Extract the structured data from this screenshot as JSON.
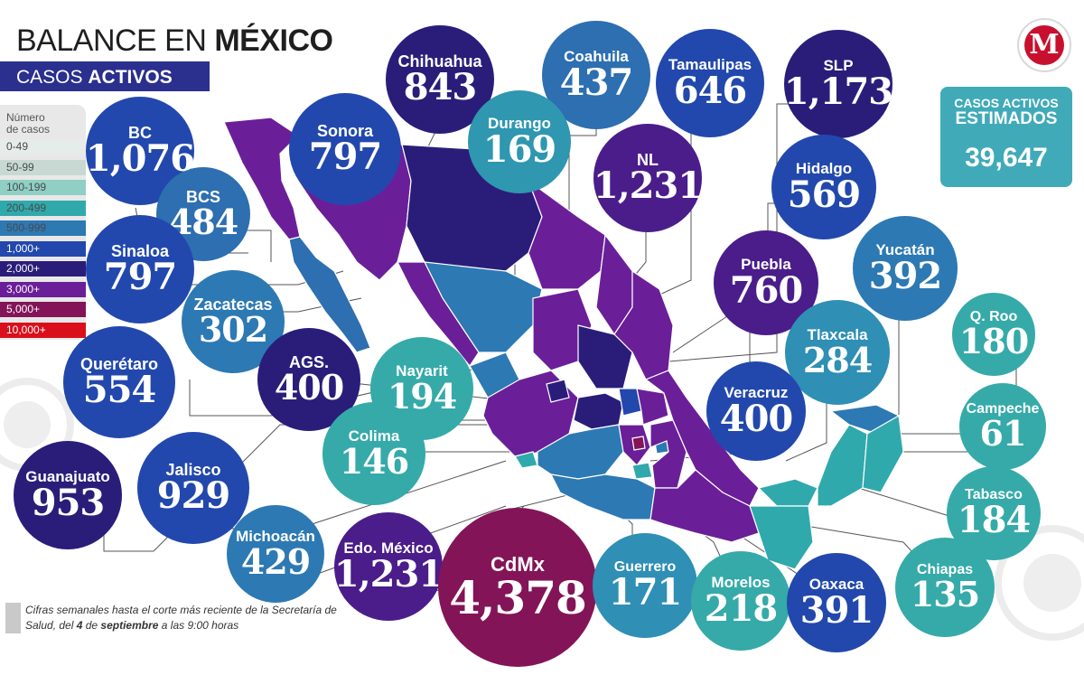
{
  "title": {
    "light": "BALANCE EN ",
    "bold": "MÉXICO"
  },
  "subtitle": {
    "light": "CASOS ",
    "bold": "ACTIVOS"
  },
  "legend": {
    "title_line1": "Número",
    "title_line2": "de casos",
    "items": [
      {
        "label": "0-49",
        "color": "#e6ece9"
      },
      {
        "label": "50-99",
        "color": "#c8d9d3"
      },
      {
        "label": "100-199",
        "color": "#8fcfc4"
      },
      {
        "label": "200-499",
        "color": "#30a9ac"
      },
      {
        "label": "500-999",
        "color": "#2d79b3"
      },
      {
        "label": "1,000+",
        "color": "#2248ad"
      },
      {
        "label": "2,000+",
        "color": "#2a1d7a"
      },
      {
        "label": "3,000+",
        "color": "#6a1f99"
      },
      {
        "label": "5,000+",
        "color": "#831458"
      },
      {
        "label": "10,000+",
        "color": "#d9101b"
      }
    ]
  },
  "total": {
    "line1": "CASOS ACTIVOS",
    "line2": "ESTIMADOS",
    "value": "39,647"
  },
  "logo": {
    "letter": "M"
  },
  "note": {
    "part1": "Cifras semanales hasta el corte más reciente de la Secretaría de Salud, del ",
    "day": "4",
    "part2": " de ",
    "month": "septiembre",
    "part3": " a las 9:00 horas"
  },
  "colors": {
    "teal": "#30a9ac",
    "blue_dark": "#2248ad",
    "blue_med": "#2d79b3",
    "navy": "#2a1d7a",
    "purple": "#6a1f99",
    "maroon": "#831458"
  },
  "states": [
    {
      "name": "BC",
      "value": "1,076",
      "color": "#2248ad"
    },
    {
      "name": "BCS",
      "value": "484",
      "color": "#2d6fb0"
    },
    {
      "name": "Sinaloa",
      "value": "797",
      "color": "#2248ad"
    },
    {
      "name": "Zacatecas",
      "value": "302",
      "color": "#2d79b3"
    },
    {
      "name": "Querétaro",
      "value": "554",
      "color": "#2248ad"
    },
    {
      "name": "AGS.",
      "value": "400",
      "color": "#2a1d7a"
    },
    {
      "name": "Guanajuato",
      "value": "953",
      "color": "#2a1d7a"
    },
    {
      "name": "Jalisco",
      "value": "929",
      "color": "#2248ad"
    },
    {
      "name": "Michoacán",
      "value": "429",
      "color": "#2d79b3"
    },
    {
      "name": "Edo. México",
      "value": "1,231",
      "color": "#4a1d8a"
    },
    {
      "name": "CdMx",
      "value": "4,378",
      "color": "#831458"
    },
    {
      "name": "Chihuahua",
      "value": "843",
      "color": "#2a1d7a"
    },
    {
      "name": "Sonora",
      "value": "797",
      "color": "#2248ad"
    },
    {
      "name": "Coahuila",
      "value": "437",
      "color": "#2d6fb0"
    },
    {
      "name": "Durango",
      "value": "169",
      "color": "#2f97b0"
    },
    {
      "name": "Tamaulipas",
      "value": "646",
      "color": "#2248ad"
    },
    {
      "name": "NL",
      "value": "1,231",
      "color": "#4a1d8a"
    },
    {
      "name": "SLP",
      "value": "1,173",
      "color": "#2a1d7a"
    },
    {
      "name": "Hidalgo",
      "value": "569",
      "color": "#2248ad"
    },
    {
      "name": "Puebla",
      "value": "760",
      "color": "#4a1d8a"
    },
    {
      "name": "Yucatán",
      "value": "392",
      "color": "#2d79b3"
    },
    {
      "name": "Tlaxcala",
      "value": "284",
      "color": "#2f8fb5"
    },
    {
      "name": "Nayarit",
      "value": "194",
      "color": "#35aaa9"
    },
    {
      "name": "Colima",
      "value": "146",
      "color": "#35aaa9"
    },
    {
      "name": "Veracruz",
      "value": "400",
      "color": "#2248ad"
    },
    {
      "name": "Q. Roo",
      "value": "180",
      "color": "#35aaa9"
    },
    {
      "name": "Campeche",
      "value": "61",
      "color": "#35aaa9"
    },
    {
      "name": "Tabasco",
      "value": "184",
      "color": "#35aaa9"
    },
    {
      "name": "Chiapas",
      "value": "135",
      "color": "#35aaa9"
    },
    {
      "name": "Guerrero",
      "value": "171",
      "color": "#2f8fb5"
    },
    {
      "name": "Morelos",
      "value": "218",
      "color": "#35aaa9"
    },
    {
      "name": "Oaxaca",
      "value": "391",
      "color": "#2248ad"
    }
  ]
}
